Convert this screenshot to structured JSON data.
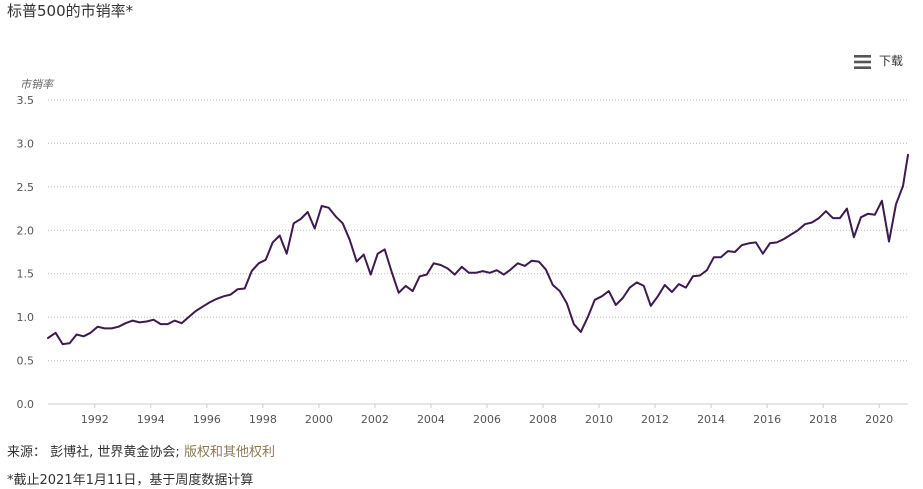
{
  "header": {
    "title": "标普500的市销率*"
  },
  "toolbar": {
    "menu_icon": "hamburger-menu-icon",
    "download_label": "下载"
  },
  "chart_data": {
    "type": "line",
    "title": "标普500的市销率*",
    "ylabel": "市销率",
    "xlabel": "",
    "ylim": [
      0,
      3.5
    ],
    "xlim": [
      1990.33,
      2021.03
    ],
    "grid": true,
    "line_color": "#3d1a4f",
    "yticks": [
      "0.0",
      "0.5",
      "1.0",
      "1.5",
      "2.0",
      "2.5",
      "3.0",
      "3.5"
    ],
    "xticks": [
      "1992",
      "1994",
      "1996",
      "1998",
      "2000",
      "2002",
      "2004",
      "2006",
      "2008",
      "2010",
      "2012",
      "2014",
      "2016",
      "2018",
      "2020"
    ],
    "series": [
      {
        "x": [
          1990.33,
          1990.6,
          1990.85,
          1991.1,
          1991.35,
          1991.6,
          1991.85,
          1992.1,
          1992.35,
          1992.6,
          1992.85,
          1993.1,
          1993.35,
          1993.6,
          1993.85,
          1994.1,
          1994.35,
          1994.6,
          1994.85,
          1995.1,
          1995.35,
          1995.6,
          1995.85,
          1996.1,
          1996.35,
          1996.6,
          1996.85,
          1997.1,
          1997.35,
          1997.6,
          1997.85,
          1998.1,
          1998.35,
          1998.6,
          1998.85,
          1999.1,
          1999.35,
          1999.6,
          1999.85,
          2000.1,
          2000.35,
          2000.6,
          2000.85,
          2001.1,
          2001.35,
          2001.6,
          2001.85,
          2002.1,
          2002.35,
          2002.6,
          2002.85,
          2003.1,
          2003.35,
          2003.6,
          2003.85,
          2004.1,
          2004.35,
          2004.6,
          2004.85,
          2005.1,
          2005.35,
          2005.6,
          2005.85,
          2006.1,
          2006.35,
          2006.6,
          2006.85,
          2007.1,
          2007.35,
          2007.6,
          2007.85,
          2008.1,
          2008.35,
          2008.6,
          2008.85,
          2009.1,
          2009.35,
          2009.6,
          2009.85,
          2010.1,
          2010.35,
          2010.6,
          2010.85,
          2011.1,
          2011.35,
          2011.6,
          2011.85,
          2012.1,
          2012.35,
          2012.6,
          2012.85,
          2013.1,
          2013.35,
          2013.6,
          2013.85,
          2014.1,
          2014.35,
          2014.6,
          2014.85,
          2015.1,
          2015.35,
          2015.6,
          2015.85,
          2016.1,
          2016.35,
          2016.6,
          2016.85,
          2017.1,
          2017.35,
          2017.6,
          2017.85,
          2018.1,
          2018.35,
          2018.6,
          2018.85,
          2019.1,
          2019.35,
          2019.6,
          2019.85,
          2020.1,
          2020.35,
          2020.6,
          2020.85,
          2021.03
        ],
        "values": [
          0.76,
          0.82,
          0.69,
          0.7,
          0.8,
          0.78,
          0.82,
          0.89,
          0.87,
          0.87,
          0.89,
          0.93,
          0.96,
          0.94,
          0.95,
          0.97,
          0.92,
          0.92,
          0.96,
          0.93,
          1.0,
          1.07,
          1.12,
          1.17,
          1.21,
          1.24,
          1.26,
          1.32,
          1.33,
          1.53,
          1.62,
          1.66,
          1.86,
          1.94,
          1.73,
          2.08,
          2.13,
          2.21,
          2.02,
          2.28,
          2.26,
          2.16,
          2.08,
          1.89,
          1.64,
          1.72,
          1.49,
          1.73,
          1.78,
          1.52,
          1.28,
          1.36,
          1.3,
          1.47,
          1.49,
          1.62,
          1.6,
          1.56,
          1.49,
          1.58,
          1.51,
          1.51,
          1.53,
          1.51,
          1.54,
          1.49,
          1.55,
          1.62,
          1.59,
          1.65,
          1.64,
          1.55,
          1.37,
          1.3,
          1.16,
          0.92,
          0.83,
          1.0,
          1.2,
          1.24,
          1.3,
          1.14,
          1.22,
          1.34,
          1.4,
          1.36,
          1.13,
          1.24,
          1.37,
          1.29,
          1.38,
          1.34,
          1.47,
          1.48,
          1.54,
          1.69,
          1.69,
          1.76,
          1.75,
          1.83,
          1.85,
          1.86,
          1.73,
          1.85,
          1.86,
          1.9,
          1.95,
          2.0,
          2.07,
          2.09,
          2.14,
          2.22,
          2.14,
          2.14,
          2.25,
          1.92,
          2.15,
          2.19,
          2.18,
          2.34,
          1.87,
          2.3,
          2.51,
          2.87
        ]
      }
    ]
  },
  "footer": {
    "source_label": "来源：",
    "source_text": "彭博社, 世界黄金协会;",
    "rights_link": "版权和其他权利",
    "note": "*截止2021年1月11日，基于周度数据计算"
  }
}
